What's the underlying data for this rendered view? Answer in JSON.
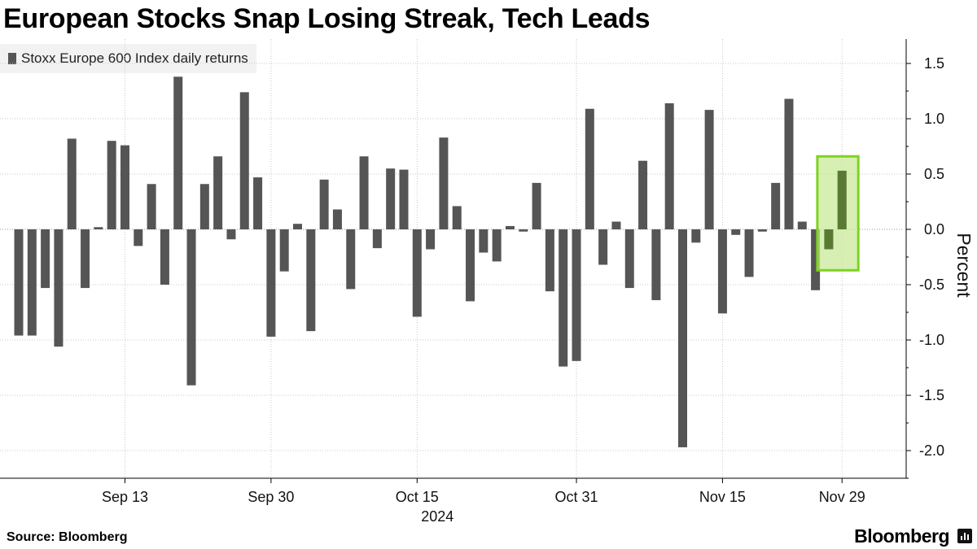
{
  "header": {
    "title": "European Stocks Snap Losing Streak, Tech Leads"
  },
  "footer": {
    "source": "Source: Bloomberg",
    "brand": "Bloomberg"
  },
  "chart_data": {
    "type": "bar",
    "title": "European Stocks Snap Losing Streak, Tech Leads",
    "series": [
      {
        "name": "Stoxx Europe 600 Index daily returns",
        "color": "#555555",
        "values": [
          -0.96,
          -0.96,
          -0.53,
          -1.06,
          0.82,
          -0.53,
          0.02,
          0.8,
          0.76,
          -0.15,
          0.41,
          -0.5,
          1.38,
          -1.41,
          0.41,
          0.66,
          -0.09,
          1.24,
          0.47,
          -0.97,
          -0.38,
          0.05,
          -0.92,
          0.45,
          0.18,
          -0.54,
          0.66,
          -0.17,
          0.55,
          0.54,
          -0.79,
          -0.18,
          0.83,
          0.21,
          -0.65,
          -0.21,
          -0.29,
          0.03,
          -0.02,
          0.42,
          -0.56,
          -1.24,
          -1.19,
          1.09,
          -0.32,
          0.07,
          -0.53,
          0.62,
          -0.64,
          1.14,
          -1.97,
          -0.12,
          1.08,
          -0.76,
          -0.05,
          -0.43,
          -0.02,
          0.42,
          1.18,
          0.07,
          -0.55,
          -0.18,
          0.53
        ]
      }
    ],
    "x_tick_labels": [
      {
        "label": "Sep 13",
        "index": 8
      },
      {
        "label": "Sep 30",
        "index": 19
      },
      {
        "label": "Oct 15",
        "index": 30
      },
      {
        "label": "Oct 31",
        "index": 42
      },
      {
        "label": "Nov 15",
        "index": 53
      },
      {
        "label": "Nov 29",
        "index": 62
      }
    ],
    "x_year_label": "2024",
    "y_ticks": [
      1.5,
      1.0,
      0.5,
      0.0,
      -0.5,
      -1.0,
      -1.5,
      -2.0
    ],
    "y_tick_labels": [
      "1.5",
      "1.0",
      "0.5",
      "0.0",
      "-0.5",
      "-1.0",
      "-1.5",
      "-2.0"
    ],
    "ylabel": "Percent",
    "ylim": [
      -2.25,
      1.7
    ],
    "grid": true,
    "legend": "top-left",
    "highlight": {
      "start_index": 61,
      "end_index": 62,
      "y_range": [
        -0.37,
        0.66
      ],
      "fill": "#c9e99a",
      "stroke": "#7ed321"
    }
  }
}
